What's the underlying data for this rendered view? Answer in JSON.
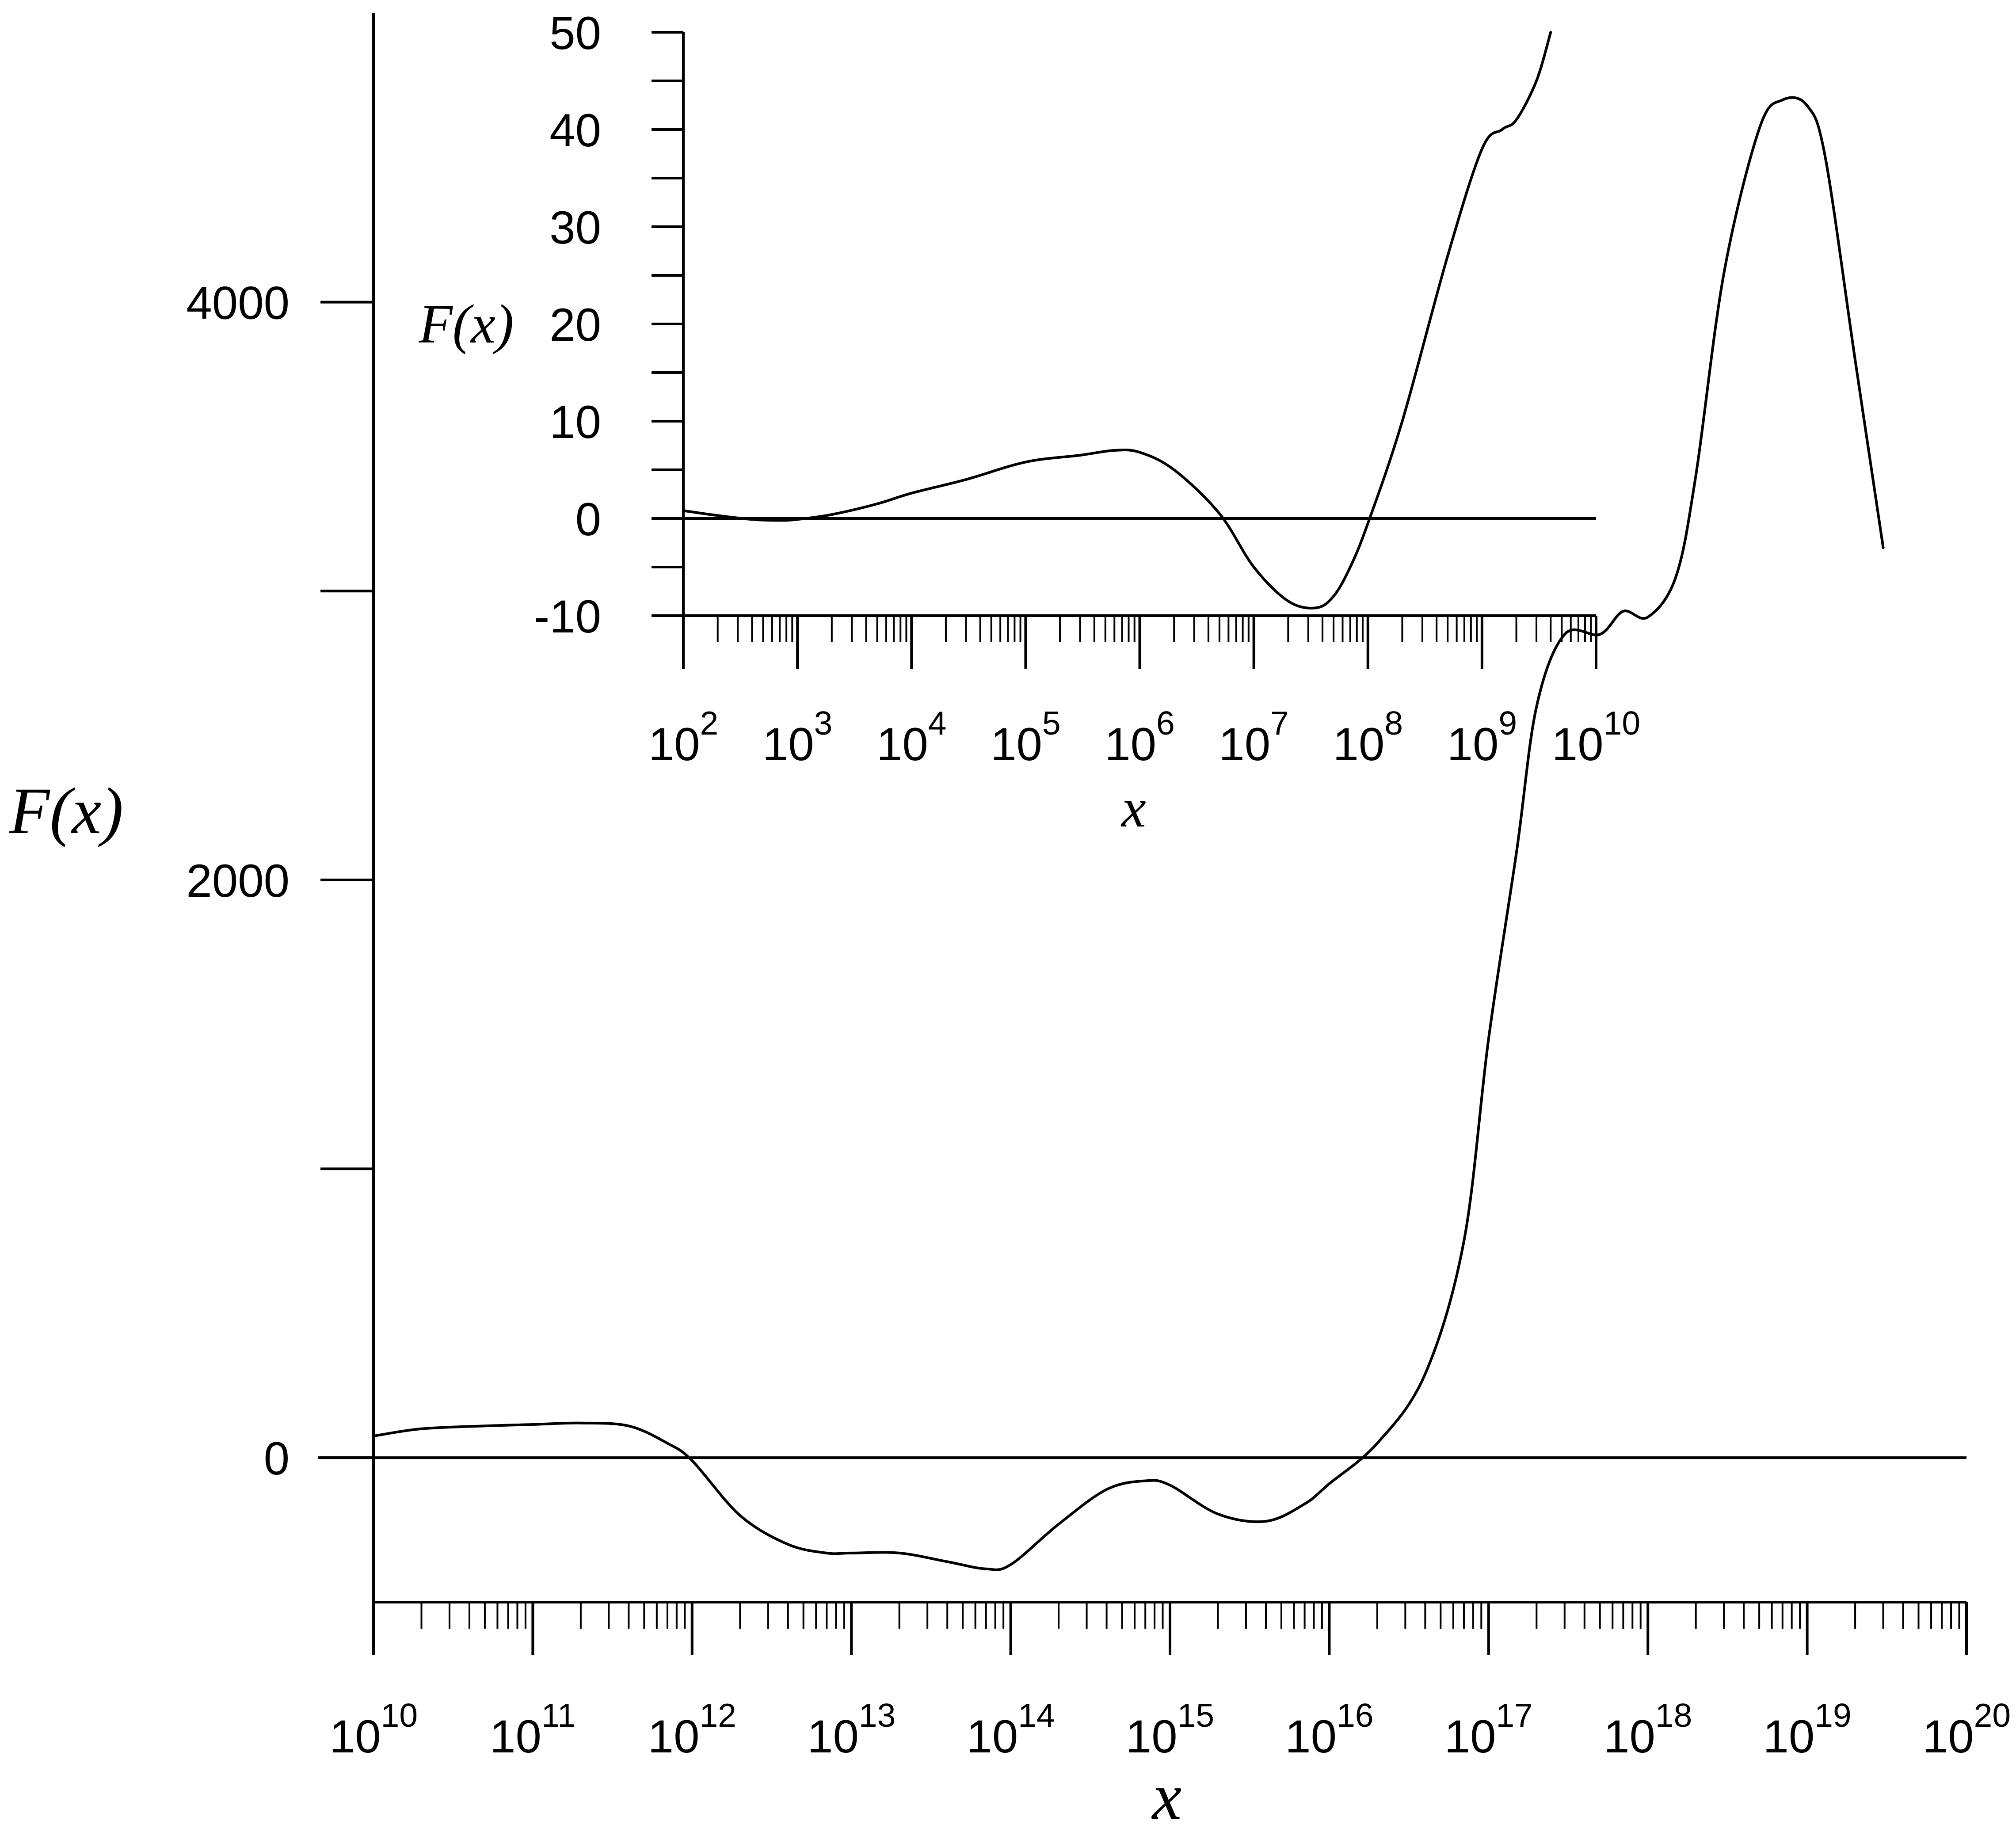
{
  "chart_data": [
    {
      "panel": "main",
      "type": "line",
      "x_scale": "log",
      "xlabel": "x",
      "ylabel": "F(x)",
      "xlim": [
        10000000000.0,
        1e+20
      ],
      "ylim": [
        -500,
        5000
      ],
      "y_ticks": [
        {
          "value": 0,
          "label": "0"
        },
        {
          "value": 1000,
          "label": ""
        },
        {
          "value": 2000,
          "label": "2000"
        },
        {
          "value": 3000,
          "label": ""
        },
        {
          "value": 4000,
          "label": "4000"
        }
      ],
      "x_ticks": [
        {
          "value": 10000000000.0,
          "base": "10",
          "exp": "10"
        },
        {
          "value": 100000000000.0,
          "base": "10",
          "exp": "11"
        },
        {
          "value": 1000000000000.0,
          "base": "10",
          "exp": "12"
        },
        {
          "value": 10000000000000.0,
          "base": "10",
          "exp": "13"
        },
        {
          "value": 100000000000000.0,
          "base": "10",
          "exp": "14"
        },
        {
          "value": 1000000000000000.0,
          "base": "10",
          "exp": "15"
        },
        {
          "value": 1e+16,
          "base": "10",
          "exp": "16"
        },
        {
          "value": 1e+17,
          "base": "10",
          "exp": "17"
        },
        {
          "value": 1e+18,
          "base": "10",
          "exp": "18"
        },
        {
          "value": 1e+19,
          "base": "10",
          "exp": "19"
        },
        {
          "value": 1e+20,
          "base": "10",
          "exp": "20"
        }
      ],
      "zero_line": true,
      "series": [
        {
          "x": [
            10000000000.0,
            20000000000.0,
            50000000000.0,
            100000000000.0,
            200000000000.0,
            400000000000.0,
            700000000000.0,
            1000000000000.0,
            2000000000000.0,
            4000000000000.0,
            7000000000000.0,
            10000000000000.0,
            20000000000000.0,
            40000000000000.0,
            70000000000000.0,
            100000000000000.0,
            200000000000000.0,
            400000000000000.0,
            700000000000000.0,
            1000000000000000.0,
            2000000000000000.0,
            4000000000000000.0,
            7000000000000000.0,
            1e+16,
            2e+16,
            4e+16,
            7e+16,
            1e+17,
            1.5e+17,
            2e+17,
            3e+17,
            5e+17,
            7e+17,
            1e+18,
            1.5e+18,
            2e+18,
            3e+18,
            5e+18,
            7e+18,
            1e+19,
            1.3e+19,
            2e+19,
            3e+19
          ],
          "y": [
            75,
            100,
            110,
            115,
            120,
            110,
            50,
            -10,
            -200,
            -300,
            -330,
            -330,
            -330,
            -360,
            -385,
            -370,
            -230,
            -110,
            -80,
            -95,
            -195,
            -220,
            -160,
            -90,
            50,
            290,
            750,
            1450,
            2100,
            2600,
            2850,
            2850,
            2930,
            2910,
            3050,
            3400,
            4100,
            4600,
            4700,
            4680,
            4500,
            3800,
            3150
          ]
        }
      ]
    },
    {
      "panel": "inset",
      "type": "line",
      "x_scale": "log",
      "xlabel": "x",
      "ylabel": "F(x)",
      "xlim": [
        100,
        10000000000.0
      ],
      "ylim": [
        -10,
        50
      ],
      "y_ticks": [
        {
          "value": -10,
          "label": "-10"
        },
        {
          "value": 0,
          "label": "0"
        },
        {
          "value": 10,
          "label": "10"
        },
        {
          "value": 20,
          "label": "20"
        },
        {
          "value": 30,
          "label": "30"
        },
        {
          "value": 40,
          "label": "40"
        },
        {
          "value": 50,
          "label": "50"
        }
      ],
      "x_ticks": [
        {
          "value": 100.0,
          "base": "10",
          "exp": "2"
        },
        {
          "value": 1000.0,
          "base": "10",
          "exp": "3"
        },
        {
          "value": 10000.0,
          "base": "10",
          "exp": "4"
        },
        {
          "value": 100000.0,
          "base": "10",
          "exp": "5"
        },
        {
          "value": 1000000.0,
          "base": "10",
          "exp": "6"
        },
        {
          "value": 10000000.0,
          "base": "10",
          "exp": "7"
        },
        {
          "value": 100000000.0,
          "base": "10",
          "exp": "8"
        },
        {
          "value": 1000000000.0,
          "base": "10",
          "exp": "9"
        },
        {
          "value": 10000000000.0,
          "base": "10",
          "exp": "10"
        }
      ],
      "zero_line": true,
      "series": [
        {
          "x": [
            100,
            200,
            400,
            700,
            1000,
            2000,
            5000,
            10000.0,
            30000.0,
            100000.0,
            300000.0,
            600000.0,
            1000000.0,
            2000000.0,
            5000000.0,
            10000000.0,
            20000000.0,
            35000000.0,
            50000000.0,
            70000000.0,
            100000000.0,
            200000000.0,
            500000000.0,
            1000000000.0,
            1500000000.0,
            2000000000.0,
            3000000000.0,
            4000000000.0
          ],
          "y": [
            0.8,
            0.3,
            -0.1,
            -0.2,
            -0.1,
            0.4,
            1.5,
            2.6,
            4.0,
            5.8,
            6.5,
            7.0,
            6.8,
            5.0,
            0.5,
            -5.0,
            -8.5,
            -9.2,
            -8.0,
            -5.0,
            -0.5,
            10.0,
            27.0,
            38.0,
            40.0,
            41.0,
            45.0,
            50.0
          ]
        }
      ]
    }
  ]
}
